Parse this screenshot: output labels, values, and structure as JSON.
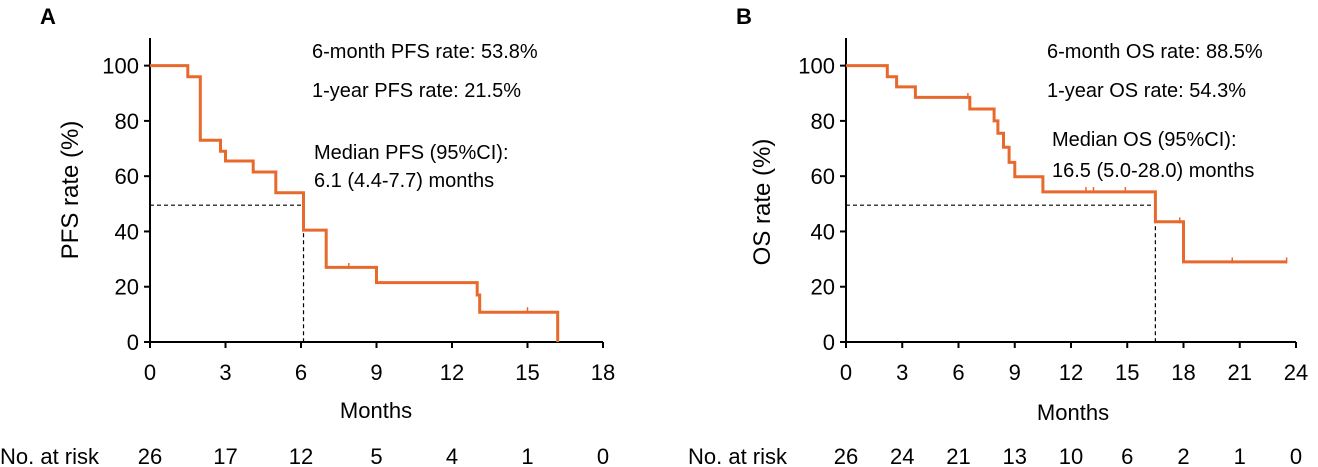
{
  "colors": {
    "curve": "#E8692C",
    "axis": "#000000"
  },
  "chart_data": [
    {
      "type": "line",
      "subtype": "kaplan-meier",
      "panel_label": "A",
      "xlabel": "Months",
      "ylabel": "PFS rate (%)",
      "xlim": [
        0,
        18
      ],
      "ylim": [
        0,
        110
      ],
      "xticks": [
        0,
        3,
        6,
        9,
        12,
        15,
        18
      ],
      "yticks": [
        0,
        20,
        40,
        60,
        80,
        100
      ],
      "steps": [
        [
          0,
          100
        ],
        [
          1.5,
          100
        ],
        [
          1.5,
          96
        ],
        [
          2.0,
          96
        ],
        [
          2.0,
          73
        ],
        [
          2.8,
          73
        ],
        [
          2.8,
          69
        ],
        [
          3.0,
          69
        ],
        [
          3.0,
          65.5
        ],
        [
          4.1,
          65.5
        ],
        [
          4.1,
          61.5
        ],
        [
          5.0,
          61.5
        ],
        [
          5.0,
          54
        ],
        [
          5.8,
          54
        ],
        [
          5.8,
          54
        ],
        [
          6.1,
          54
        ],
        [
          6.1,
          40.5
        ],
        [
          7.0,
          40.5
        ],
        [
          7.0,
          27
        ],
        [
          9.0,
          27
        ],
        [
          9.0,
          21.5
        ],
        [
          13.0,
          21.5
        ],
        [
          13.0,
          17
        ],
        [
          13.1,
          17
        ],
        [
          13.1,
          10.8
        ],
        [
          16.2,
          10.8
        ],
        [
          16.2,
          0
        ]
      ],
      "censored": [
        [
          7.9,
          27.5
        ],
        [
          15.0,
          11.5
        ]
      ],
      "median_x": 6.1,
      "median_y": 49.5,
      "annotations": [
        "6-month PFS rate: 53.8%",
        "1-year PFS rate: 21.5%",
        "Median PFS (95%CI):",
        "6.1 (4.4-7.7) months"
      ],
      "risk_label": "No. at risk",
      "risk_counts": [
        "26",
        "17",
        "12",
        "5",
        "4",
        "1",
        "0"
      ]
    },
    {
      "type": "line",
      "subtype": "kaplan-meier",
      "panel_label": "B",
      "xlabel": "Months",
      "ylabel": "OS rate (%)",
      "xlim": [
        0,
        24
      ],
      "ylim": [
        0,
        110
      ],
      "xticks": [
        0,
        3,
        6,
        9,
        12,
        15,
        18,
        21,
        24
      ],
      "yticks": [
        0,
        20,
        40,
        60,
        80,
        100
      ],
      "steps": [
        [
          0,
          100
        ],
        [
          2.2,
          100
        ],
        [
          2.2,
          96
        ],
        [
          2.7,
          96
        ],
        [
          2.7,
          92.3
        ],
        [
          3.7,
          92.3
        ],
        [
          3.7,
          88.5
        ],
        [
          6.6,
          88.5
        ],
        [
          6.6,
          84.3
        ],
        [
          7.9,
          84.3
        ],
        [
          7.9,
          80
        ],
        [
          8.1,
          80
        ],
        [
          8.1,
          75.5
        ],
        [
          8.4,
          75.5
        ],
        [
          8.4,
          70.5
        ],
        [
          8.7,
          70.5
        ],
        [
          8.7,
          65
        ],
        [
          9.0,
          65
        ],
        [
          9.0,
          59.8
        ],
        [
          10.5,
          59.8
        ],
        [
          10.5,
          54.3
        ],
        [
          16.5,
          54.3
        ],
        [
          16.5,
          43.5
        ],
        [
          18.0,
          43.5
        ],
        [
          18.0,
          29
        ],
        [
          23.5,
          29
        ]
      ],
      "censored": [
        [
          6.5,
          89
        ],
        [
          12.8,
          55
        ],
        [
          13.2,
          55
        ],
        [
          14.9,
          55
        ],
        [
          17.8,
          44
        ],
        [
          20.6,
          29.5
        ],
        [
          23.5,
          29.5
        ]
      ],
      "median_x": 16.5,
      "median_y": 49.5,
      "annotations": [
        "6-month OS rate: 88.5%",
        "1-year OS rate: 54.3%",
        "Median OS (95%CI):",
        "16.5 (5.0-28.0) months"
      ],
      "risk_label": "No. at risk",
      "risk_counts": [
        "26",
        "24",
        "21",
        "13",
        "10",
        "6",
        "2",
        "1",
        "0"
      ]
    }
  ]
}
